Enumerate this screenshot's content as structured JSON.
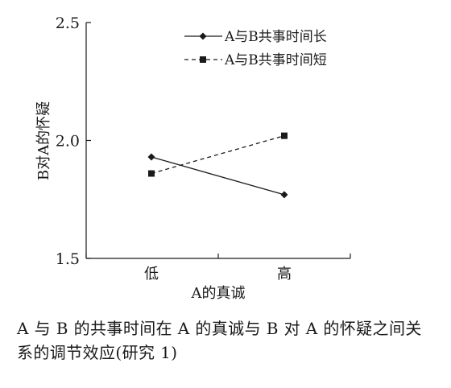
{
  "chart_data": {
    "type": "line",
    "categories": [
      "低",
      "高"
    ],
    "series": [
      {
        "name": "A与B共事时间长",
        "values": [
          1.93,
          1.77
        ],
        "marker": "diamond",
        "line": "solid"
      },
      {
        "name": "A与B共事时间短",
        "values": [
          1.86,
          2.02
        ],
        "marker": "square",
        "line": "dashed"
      }
    ],
    "xlabel": "A的真诚",
    "ylabel": "B对A的怀疑",
    "ylim": [
      1.5,
      2.5
    ],
    "yticks": [
      "1.5",
      "2.0",
      "2.5"
    ],
    "legend_position": "top-right",
    "grid": false
  },
  "caption": "A 与 B 的共事时间在 A 的真诚与 B 对 A 的怀疑之间关系的调节效应(研究 1)",
  "colors": {
    "line": "#1a1a1a",
    "background": "#ffffff"
  }
}
